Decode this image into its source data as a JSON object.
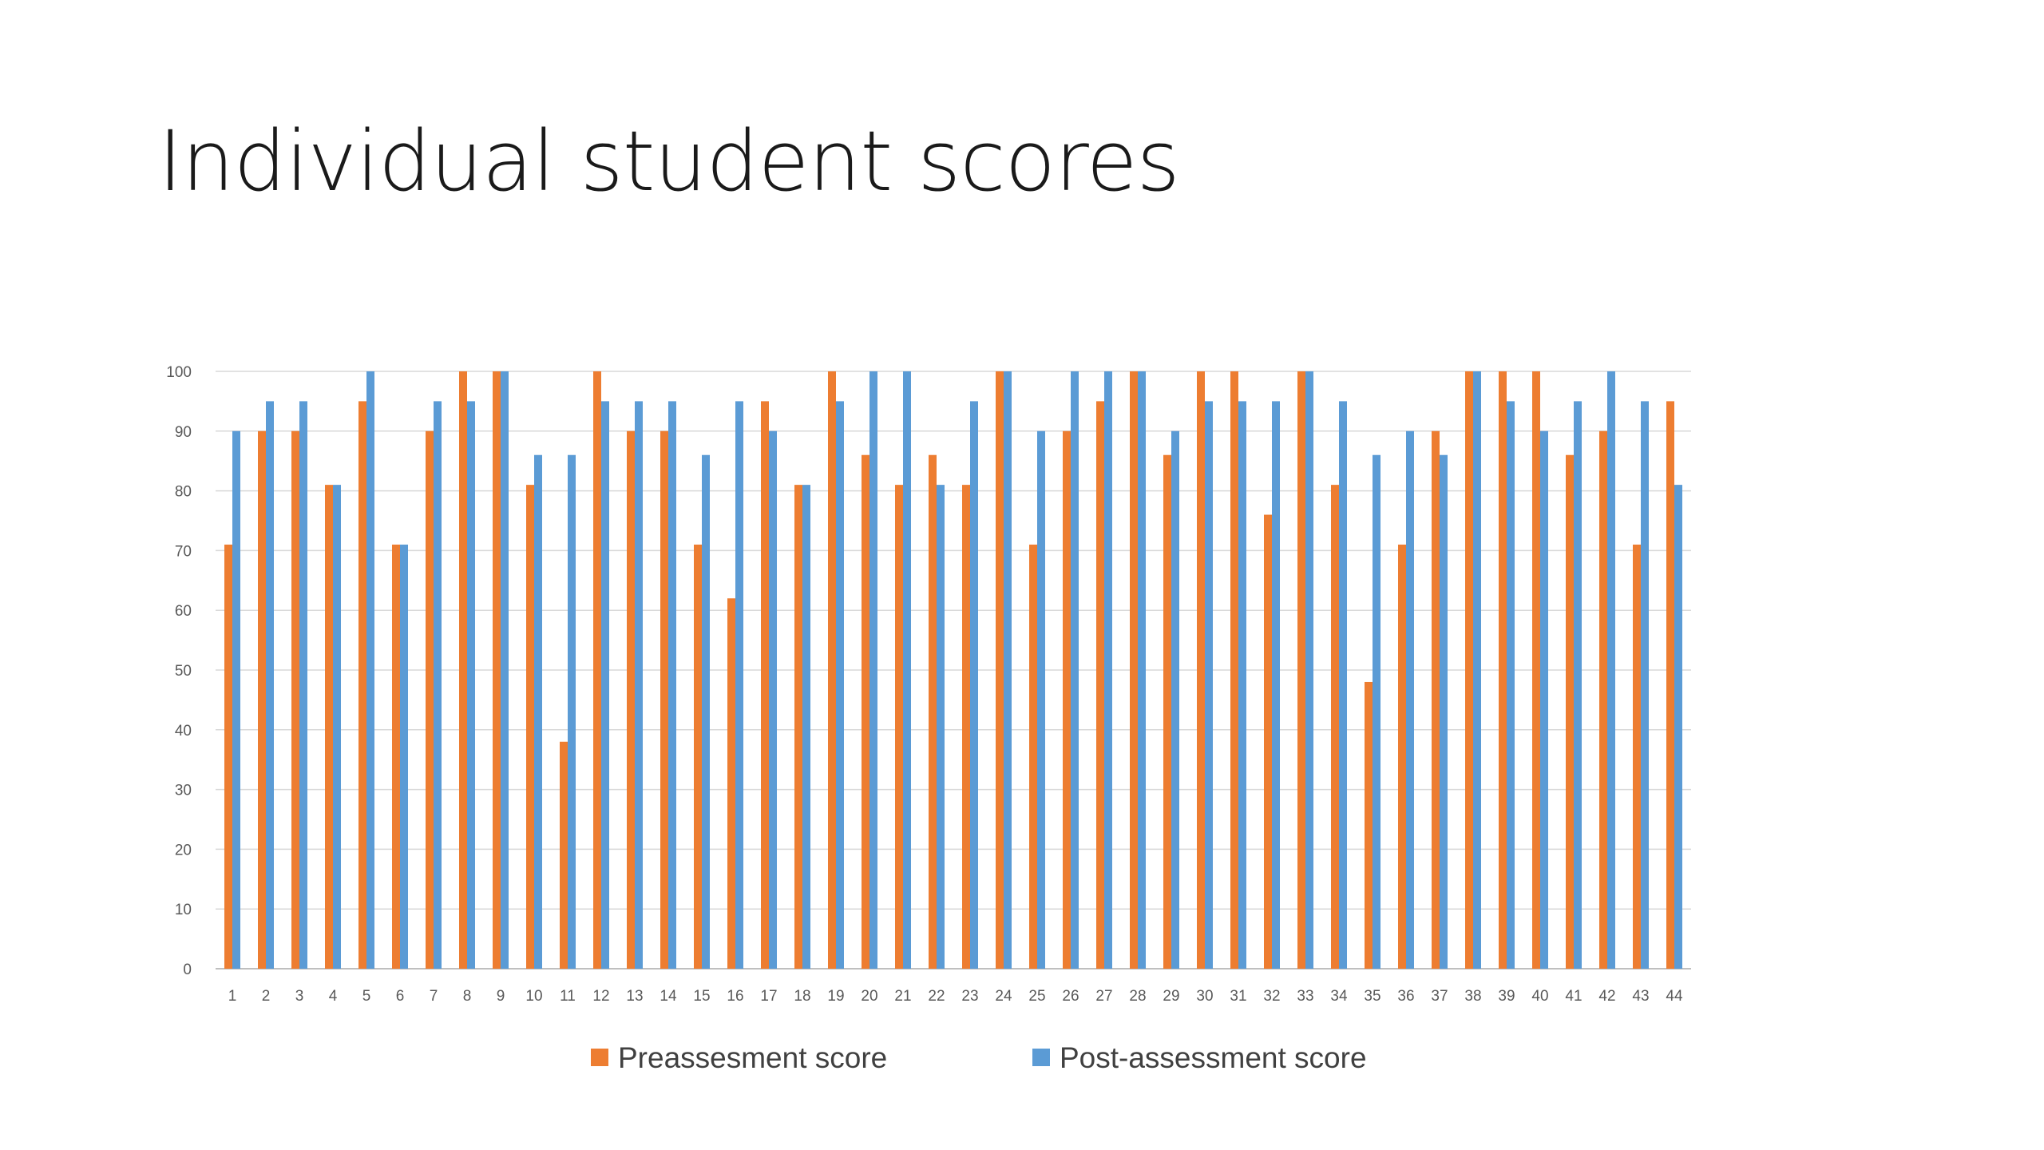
{
  "slide": {
    "title": "Individual student scores"
  },
  "chart_data": {
    "type": "bar",
    "title": "",
    "xlabel": "",
    "ylabel": "",
    "ylim": [
      0,
      100
    ],
    "yticks": [
      0,
      10,
      20,
      30,
      40,
      50,
      60,
      70,
      80,
      90,
      100
    ],
    "grid": true,
    "legend_position": "bottom",
    "categories": [
      "1",
      "2",
      "3",
      "4",
      "5",
      "6",
      "7",
      "8",
      "9",
      "10",
      "11",
      "12",
      "13",
      "14",
      "15",
      "16",
      "17",
      "18",
      "19",
      "20",
      "21",
      "22",
      "23",
      "24",
      "25",
      "26",
      "27",
      "28",
      "29",
      "30",
      "31",
      "32",
      "33",
      "34",
      "35",
      "36",
      "37",
      "38",
      "39",
      "40",
      "41",
      "42",
      "43",
      "44"
    ],
    "series": [
      {
        "name": "Preassesment score",
        "color": "#ED7D31",
        "values": [
          71,
          90,
          90,
          81,
          95,
          71,
          90,
          100,
          100,
          81,
          38,
          100,
          90,
          90,
          71,
          62,
          95,
          81,
          100,
          86,
          81,
          86,
          81,
          100,
          71,
          90,
          95,
          100,
          86,
          100,
          100,
          76,
          100,
          81,
          48,
          71,
          90,
          100,
          100,
          100,
          86,
          90,
          71,
          95
        ]
      },
      {
        "name": "Post-assessment score",
        "color": "#5B9BD5",
        "values": [
          90,
          95,
          95,
          81,
          100,
          71,
          95,
          95,
          100,
          86,
          86,
          95,
          95,
          95,
          86,
          95,
          90,
          81,
          95,
          100,
          100,
          81,
          95,
          100,
          90,
          100,
          100,
          100,
          90,
          95,
          95,
          95,
          100,
          95,
          86,
          90,
          86,
          100,
          95,
          90,
          95,
          100,
          95,
          81
        ]
      }
    ]
  }
}
